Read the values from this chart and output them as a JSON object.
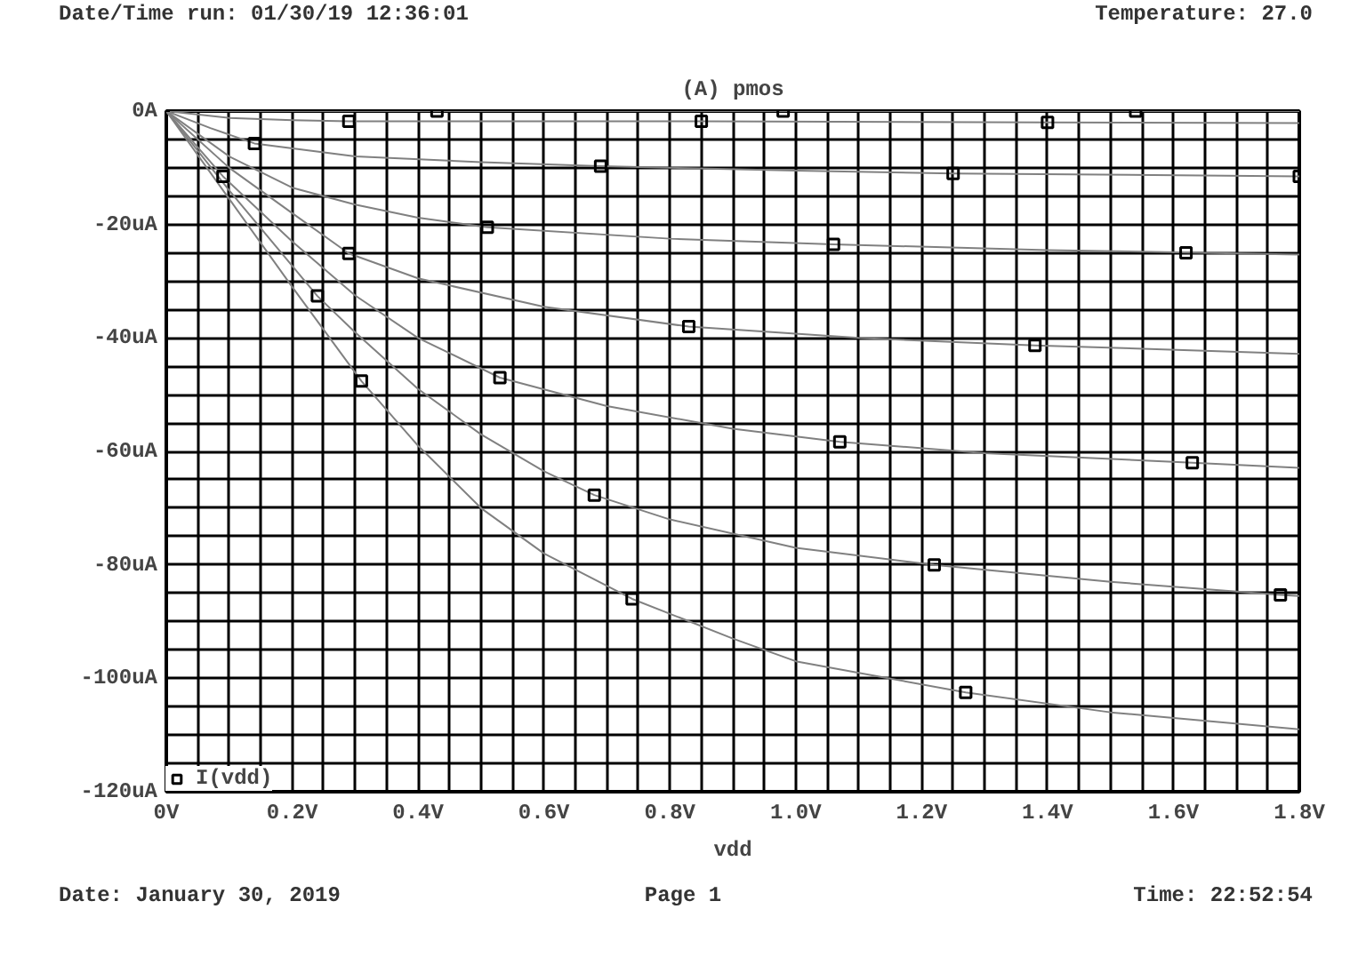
{
  "chart_data": {
    "type": "line",
    "title": "(A) pmos",
    "xlabel": "vdd",
    "annotations": [
      "Date/Time run: 01/30/19 12:36:01",
      "Temperature: 27.0",
      "Date: January 30, 2019",
      "Page 1",
      "Time: 22:52:54"
    ],
    "xlim": [
      0,
      1.8
    ],
    "ylim": [
      -120,
      0
    ],
    "xticks": [
      {
        "value": 0,
        "label": "0V"
      },
      {
        "value": 0.05,
        "label": null
      },
      {
        "value": 0.1,
        "label": null
      },
      {
        "value": 0.15,
        "label": null
      },
      {
        "value": 0.2,
        "label": "0.2V"
      },
      {
        "value": 0.25,
        "label": null
      },
      {
        "value": 0.3,
        "label": null
      },
      {
        "value": 0.35,
        "label": null
      },
      {
        "value": 0.4,
        "label": "0.4V"
      },
      {
        "value": 0.45,
        "label": null
      },
      {
        "value": 0.5,
        "label": null
      },
      {
        "value": 0.55,
        "label": null
      },
      {
        "value": 0.6,
        "label": "0.6V"
      },
      {
        "value": 0.65,
        "label": null
      },
      {
        "value": 0.7,
        "label": null
      },
      {
        "value": 0.75,
        "label": null
      },
      {
        "value": 0.8,
        "label": "0.8V"
      },
      {
        "value": 0.85,
        "label": null
      },
      {
        "value": 0.9,
        "label": null
      },
      {
        "value": 0.95,
        "label": null
      },
      {
        "value": 1.0,
        "label": "1.0V"
      },
      {
        "value": 1.05,
        "label": null
      },
      {
        "value": 1.1,
        "label": null
      },
      {
        "value": 1.15,
        "label": null
      },
      {
        "value": 1.2,
        "label": "1.2V"
      },
      {
        "value": 1.25,
        "label": null
      },
      {
        "value": 1.3,
        "label": null
      },
      {
        "value": 1.35,
        "label": null
      },
      {
        "value": 1.4,
        "label": "1.4V"
      },
      {
        "value": 1.45,
        "label": null
      },
      {
        "value": 1.5,
        "label": null
      },
      {
        "value": 1.55,
        "label": null
      },
      {
        "value": 1.6,
        "label": "1.6V"
      },
      {
        "value": 1.65,
        "label": null
      },
      {
        "value": 1.7,
        "label": null
      },
      {
        "value": 1.75,
        "label": null
      },
      {
        "value": 1.8,
        "label": "1.8V"
      }
    ],
    "yticks": [
      {
        "value": 0,
        "label": "0A"
      },
      {
        "value": -5,
        "label": null
      },
      {
        "value": -10,
        "label": null
      },
      {
        "value": -15,
        "label": null
      },
      {
        "value": -20,
        "label": "-20uA"
      },
      {
        "value": -25,
        "label": null
      },
      {
        "value": -30,
        "label": null
      },
      {
        "value": -35,
        "label": null
      },
      {
        "value": -40,
        "label": "-40uA"
      },
      {
        "value": -45,
        "label": null
      },
      {
        "value": -50,
        "label": null
      },
      {
        "value": -55,
        "label": null
      },
      {
        "value": -60,
        "label": "-60uA"
      },
      {
        "value": -65,
        "label": null
      },
      {
        "value": -70,
        "label": null
      },
      {
        "value": -75,
        "label": null
      },
      {
        "value": -80,
        "label": "-80uA"
      },
      {
        "value": -85,
        "label": null
      },
      {
        "value": -90,
        "label": null
      },
      {
        "value": -95,
        "label": null
      },
      {
        "value": -100,
        "label": "-100uA"
      },
      {
        "value": -105,
        "label": null
      },
      {
        "value": -110,
        "label": null
      },
      {
        "value": -115,
        "label": null
      },
      {
        "value": -120,
        "label": "-120uA"
      }
    ],
    "grid": true,
    "legend": "bottom left",
    "series": [
      {
        "color": "#808080",
        "x": [
          0,
          0.9,
          1.8
        ],
        "values": [
          0,
          0,
          0
        ]
      },
      {
        "color": "#808080",
        "x": [
          0,
          0.1,
          0.2,
          0.29,
          0.85,
          1.4,
          1.8
        ],
        "values": [
          0,
          -1.2,
          -1.6,
          -1.8,
          -1.8,
          -2,
          -2.1
        ]
      },
      {
        "color": "#808080",
        "x": [
          0,
          0.07,
          0.14,
          0.3,
          0.5,
          0.69,
          1.0,
          1.25,
          1.8
        ],
        "values": [
          0,
          -3,
          -5.7,
          -8,
          -9,
          -9.7,
          -10.5,
          -11,
          -11.5
        ]
      },
      {
        "color": "#808080",
        "x": [
          0,
          0.1,
          0.2,
          0.3,
          0.4,
          0.51,
          0.8,
          1.06,
          1.4,
          1.8
        ],
        "values": [
          0,
          -8,
          -13.5,
          -16.5,
          -18.8,
          -20.5,
          -22.5,
          -23.5,
          -24.5,
          -25.3
        ]
      },
      {
        "color": "#808080",
        "x": [
          0,
          0.1,
          0.2,
          0.29,
          0.4,
          0.6,
          0.83,
          1.1,
          1.38,
          1.8
        ],
        "values": [
          0,
          -10,
          -18,
          -25.1,
          -29.5,
          -34.5,
          -38,
          -40,
          -41.3,
          -42.8
        ]
      },
      {
        "color": "#808080",
        "x": [
          0,
          0.09,
          0.2,
          0.3,
          0.4,
          0.53,
          0.7,
          0.9,
          1.07,
          1.3,
          1.63,
          1.8
        ],
        "values": [
          0,
          -11.5,
          -23,
          -32.5,
          -40,
          -47,
          -52,
          -56,
          -58.3,
          -60.3,
          -62,
          -62.9
        ]
      },
      {
        "color": "#808080",
        "x": [
          0,
          0.1,
          0.24,
          0.3,
          0.4,
          0.5,
          0.6,
          0.68,
          0.8,
          1.0,
          1.22,
          1.5,
          1.77,
          1.8
        ],
        "values": [
          0,
          -14,
          -32.6,
          -39,
          -49,
          -57,
          -63.5,
          -67.7,
          -72,
          -77,
          -80,
          -83,
          -85.3,
          -85.5
        ]
      },
      {
        "color": "#808080",
        "x": [
          0,
          0.1,
          0.2,
          0.31,
          0.4,
          0.5,
          0.6,
          0.74,
          0.9,
          1.0,
          1.27,
          1.5,
          1.8
        ],
        "values": [
          0,
          -15.5,
          -31,
          -47.6,
          -59,
          -70,
          -78,
          -86,
          -93,
          -97,
          -102.5,
          -106,
          -109
        ]
      },
      {
        "type": "scatter",
        "name": "I(vdd)",
        "color": "#000000",
        "marker": "square",
        "x": [
          0.43,
          0.98,
          1.54,
          0.29,
          0.85,
          1.4,
          0.14,
          0.69,
          1.25,
          1.8,
          0.51,
          1.06,
          1.62,
          0.29,
          0.83,
          1.38,
          0.09,
          0.53,
          1.07,
          1.63,
          0.24,
          0.68,
          1.22,
          1.77,
          0.31,
          0.74,
          1.27
        ],
        "values": [
          0,
          0,
          0,
          -1.8,
          -1.8,
          -2,
          -5.7,
          -9.7,
          -11,
          -11.5,
          -20.5,
          -23.5,
          -25,
          -25.1,
          -38,
          -41.3,
          -11.5,
          -47,
          -58.3,
          -62,
          -32.6,
          -67.7,
          -80,
          -85.3,
          -47.6,
          -86,
          -102.5
        ]
      }
    ]
  }
}
